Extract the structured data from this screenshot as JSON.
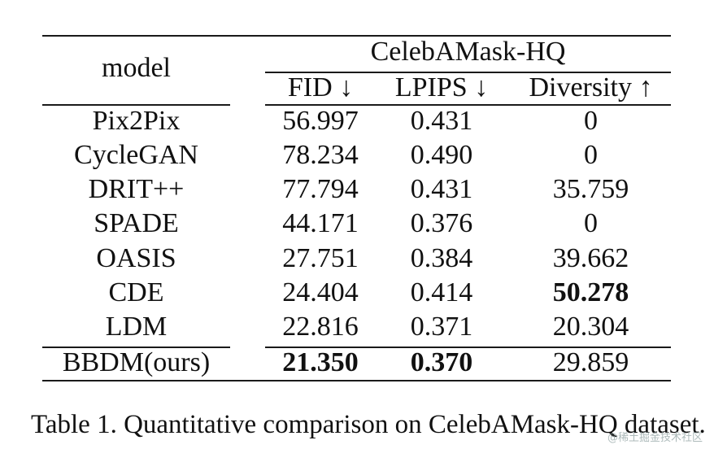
{
  "table": {
    "model_header": "model",
    "dataset_header": "CelebAMask-HQ",
    "metrics": [
      "FID ↓",
      "LPIPS ↓",
      "Diversity ↑"
    ],
    "rows": [
      {
        "model": "Pix2Pix",
        "fid": "56.997",
        "lpips": "0.431",
        "diversity": "0"
      },
      {
        "model": "CycleGAN",
        "fid": "78.234",
        "lpips": "0.490",
        "diversity": "0"
      },
      {
        "model": "DRIT++",
        "fid": "77.794",
        "lpips": "0.431",
        "diversity": "35.759"
      },
      {
        "model": "SPADE",
        "fid": "44.171",
        "lpips": "0.376",
        "diversity": "0"
      },
      {
        "model": "OASIS",
        "fid": "27.751",
        "lpips": "0.384",
        "diversity": "39.662"
      },
      {
        "model": "CDE",
        "fid": "24.404",
        "lpips": "0.414",
        "diversity": "50.278"
      },
      {
        "model": "LDM",
        "fid": "22.816",
        "lpips": "0.371",
        "diversity": "20.304"
      },
      {
        "model": "BBDM(ours)",
        "fid": "21.350",
        "lpips": "0.370",
        "diversity": "29.859"
      }
    ]
  },
  "caption": "Table 1. Quantitative comparison on CelebAMask-HQ dataset.",
  "watermark": "@稀土掘金技术社区"
}
